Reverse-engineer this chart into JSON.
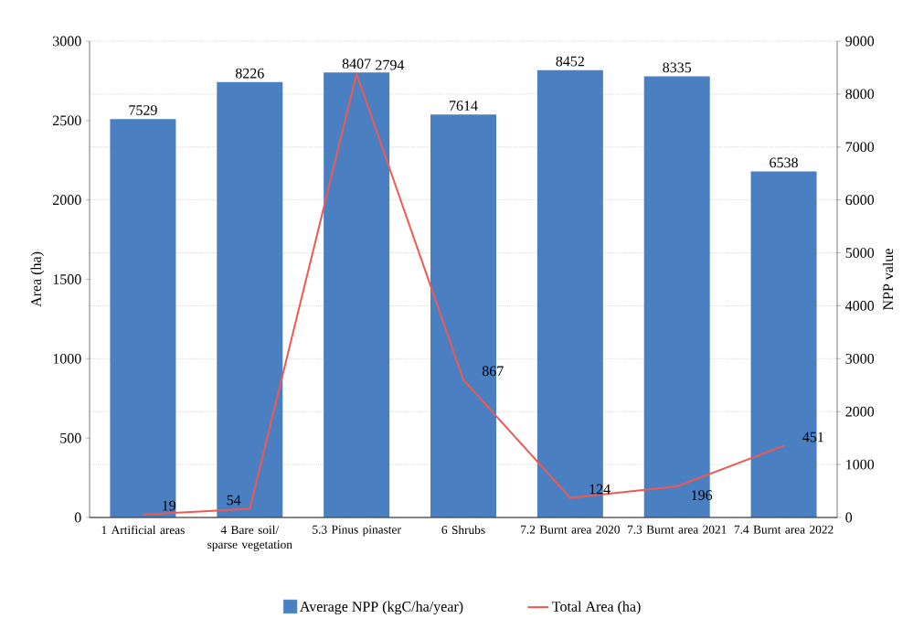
{
  "chart_data": {
    "type": "bar",
    "ylabel": "Area (ha)",
    "y2label": "NPP value",
    "categories": [
      "1 Artificial areas",
      "4 Bare soil/ sparse vegetation",
      "5.3 Pinus pinaster",
      "6 Shrubs",
      "7.2 Burnt area 2020",
      "7.3 Burnt area 2021",
      "7.4 Burnt area 2022"
    ],
    "series": [
      {
        "name": "Average NPP (kgC/ha/year)",
        "axis": "y2",
        "color": "#4a7fc1",
        "values": [
          7529,
          8226,
          8407,
          7614,
          8452,
          8335,
          6538
        ]
      },
      {
        "name": "Total Area (ha)",
        "type": "line",
        "axis": "y",
        "color": "#ee5a52",
        "values": [
          19,
          54,
          2794,
          867,
          124,
          196,
          451
        ]
      }
    ],
    "ylim": [
      0,
      3000
    ],
    "yticks": [
      0,
      500,
      1000,
      1500,
      2000,
      2500,
      3000
    ],
    "y2lim": [
      0,
      9000
    ],
    "y2ticks": [
      0,
      1000,
      2000,
      3000,
      4000,
      5000,
      6000,
      7000,
      8000,
      9000
    ],
    "grid": "y",
    "legend": "bottom",
    "data_labels": true,
    "marker": "none",
    "line_style": "solid"
  }
}
